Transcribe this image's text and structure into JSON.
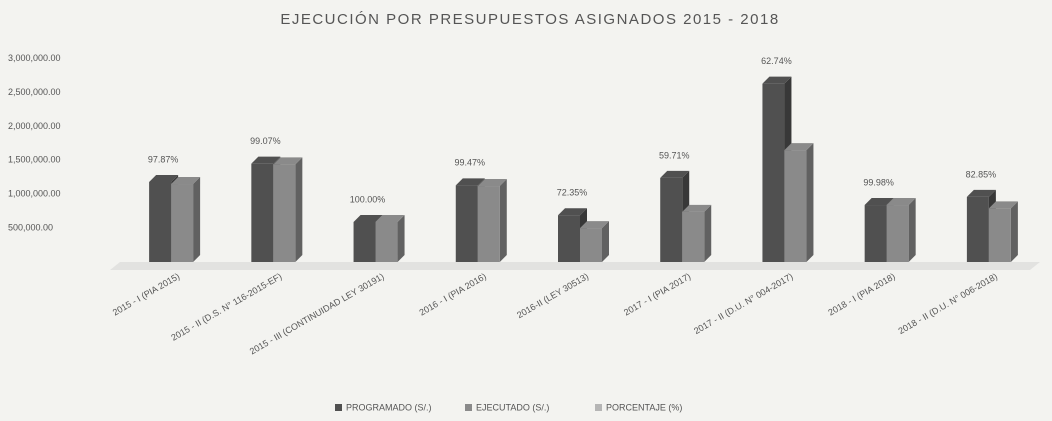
{
  "chart_data": {
    "type": "bar3d",
    "title": "EJECUCIÓN POR PRESUPUESTOS ASIGNADOS 2015 - 2018",
    "categories": [
      "2015 - I (PIA 2015)",
      "2015 - II (D.S. N° 116-2015-EF)",
      "2015 - III (CONTINUIDAD LEY 30191)",
      "2016 - I (PIA 2016)",
      "2016-II (LEY 30513)",
      "2017 - I (PIA 2017)",
      "2017 - II (D.U. N° 004-2017)",
      "2018 - I (PIA 2018)",
      "2018 - II (D.U. N° 006-2018)"
    ],
    "series": [
      {
        "name": "PROGRAMADO (S/.)",
        "color": "#505050",
        "values": [
          1180000,
          1450000,
          590000,
          1130000,
          690000,
          1240000,
          2630000,
          840000,
          960000
        ]
      },
      {
        "name": "EJECUTADO (S/.)",
        "color": "#8a8a8a",
        "values": [
          1150000,
          1440000,
          590000,
          1120000,
          500000,
          740000,
          1650000,
          840000,
          790000
        ]
      },
      {
        "name": "PORCENTAJE (%)",
        "color": "#b5b5b5",
        "role": "label",
        "values": [
          97.87,
          99.07,
          100.0,
          99.47,
          72.35,
          59.71,
          62.74,
          99.98,
          82.85
        ],
        "value_labels": [
          "97.87%",
          "99.07%",
          "100.00%",
          "99.47%",
          "72.35%",
          "59.71%",
          "62.74%",
          "99.98%",
          "82.85%"
        ]
      }
    ],
    "ylim": [
      0,
      3200000
    ],
    "yticks": [
      {
        "value": 500000,
        "label": "500,000.00"
      },
      {
        "value": 1000000,
        "label": "1,000,000.00"
      },
      {
        "value": 1500000,
        "label": "1,500,000.00"
      },
      {
        "value": 2000000,
        "label": "2,000,000.00"
      },
      {
        "value": 2500000,
        "label": "2,500,000.00"
      },
      {
        "value": 3000000,
        "label": "3,000,000.00"
      }
    ],
    "grid": false,
    "legend": "bottom"
  }
}
